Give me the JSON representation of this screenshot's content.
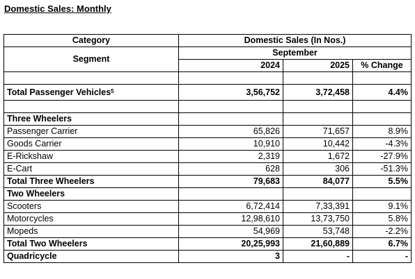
{
  "page_title": "Domestic Sales: Monthly",
  "header": {
    "category": "Category",
    "segment": "Segment",
    "domestic_sales": "Domestic Sales (In Nos.)",
    "month": "September",
    "year1": "2024",
    "year2": "2025",
    "change": "% Change"
  },
  "rows": {
    "passenger_vehicles": {
      "label": "Total Passenger Vehicles",
      "footnote": "5",
      "v2024": "3,56,752",
      "v2025": "3,72,458",
      "change": "4.4%"
    },
    "three_wheelers": {
      "group_label": "Three Wheelers",
      "items": [
        {
          "label": "Passenger Carrier",
          "v2024": "65,826",
          "v2025": "71,657",
          "change": "8.9%"
        },
        {
          "label": "Goods Carrier",
          "v2024": "10,910",
          "v2025": "10,442",
          "change": "-4.3%"
        },
        {
          "label": "E-Rickshaw",
          "v2024": "2,319",
          "v2025": "1,672",
          "change": "-27.9%"
        },
        {
          "label": "E-Cart",
          "v2024": "628",
          "v2025": "306",
          "change": "-51.3%"
        }
      ],
      "total": {
        "label": "Total Three Wheelers",
        "v2024": "79,683",
        "v2025": "84,077",
        "change": "5.5%"
      }
    },
    "two_wheelers": {
      "group_label": "Two Wheelers",
      "items": [
        {
          "label": "Scooters",
          "v2024": "6,72,414",
          "v2025": "7,33,391",
          "change": "9.1%"
        },
        {
          "label": "Motorcycles",
          "v2024": "12,98,610",
          "v2025": "13,73,750",
          "change": "5.8%"
        },
        {
          "label": "Mopeds",
          "v2024": "54,969",
          "v2025": "53,748",
          "change": "-2.2%"
        }
      ],
      "total": {
        "label": "Total Two Wheelers",
        "v2024": "20,25,993",
        "v2025": "21,60,889",
        "change": "6.7%"
      }
    },
    "quadricycle": {
      "label": "Quadricycle",
      "v2024": "3",
      "v2025": "-",
      "change": "-"
    }
  }
}
